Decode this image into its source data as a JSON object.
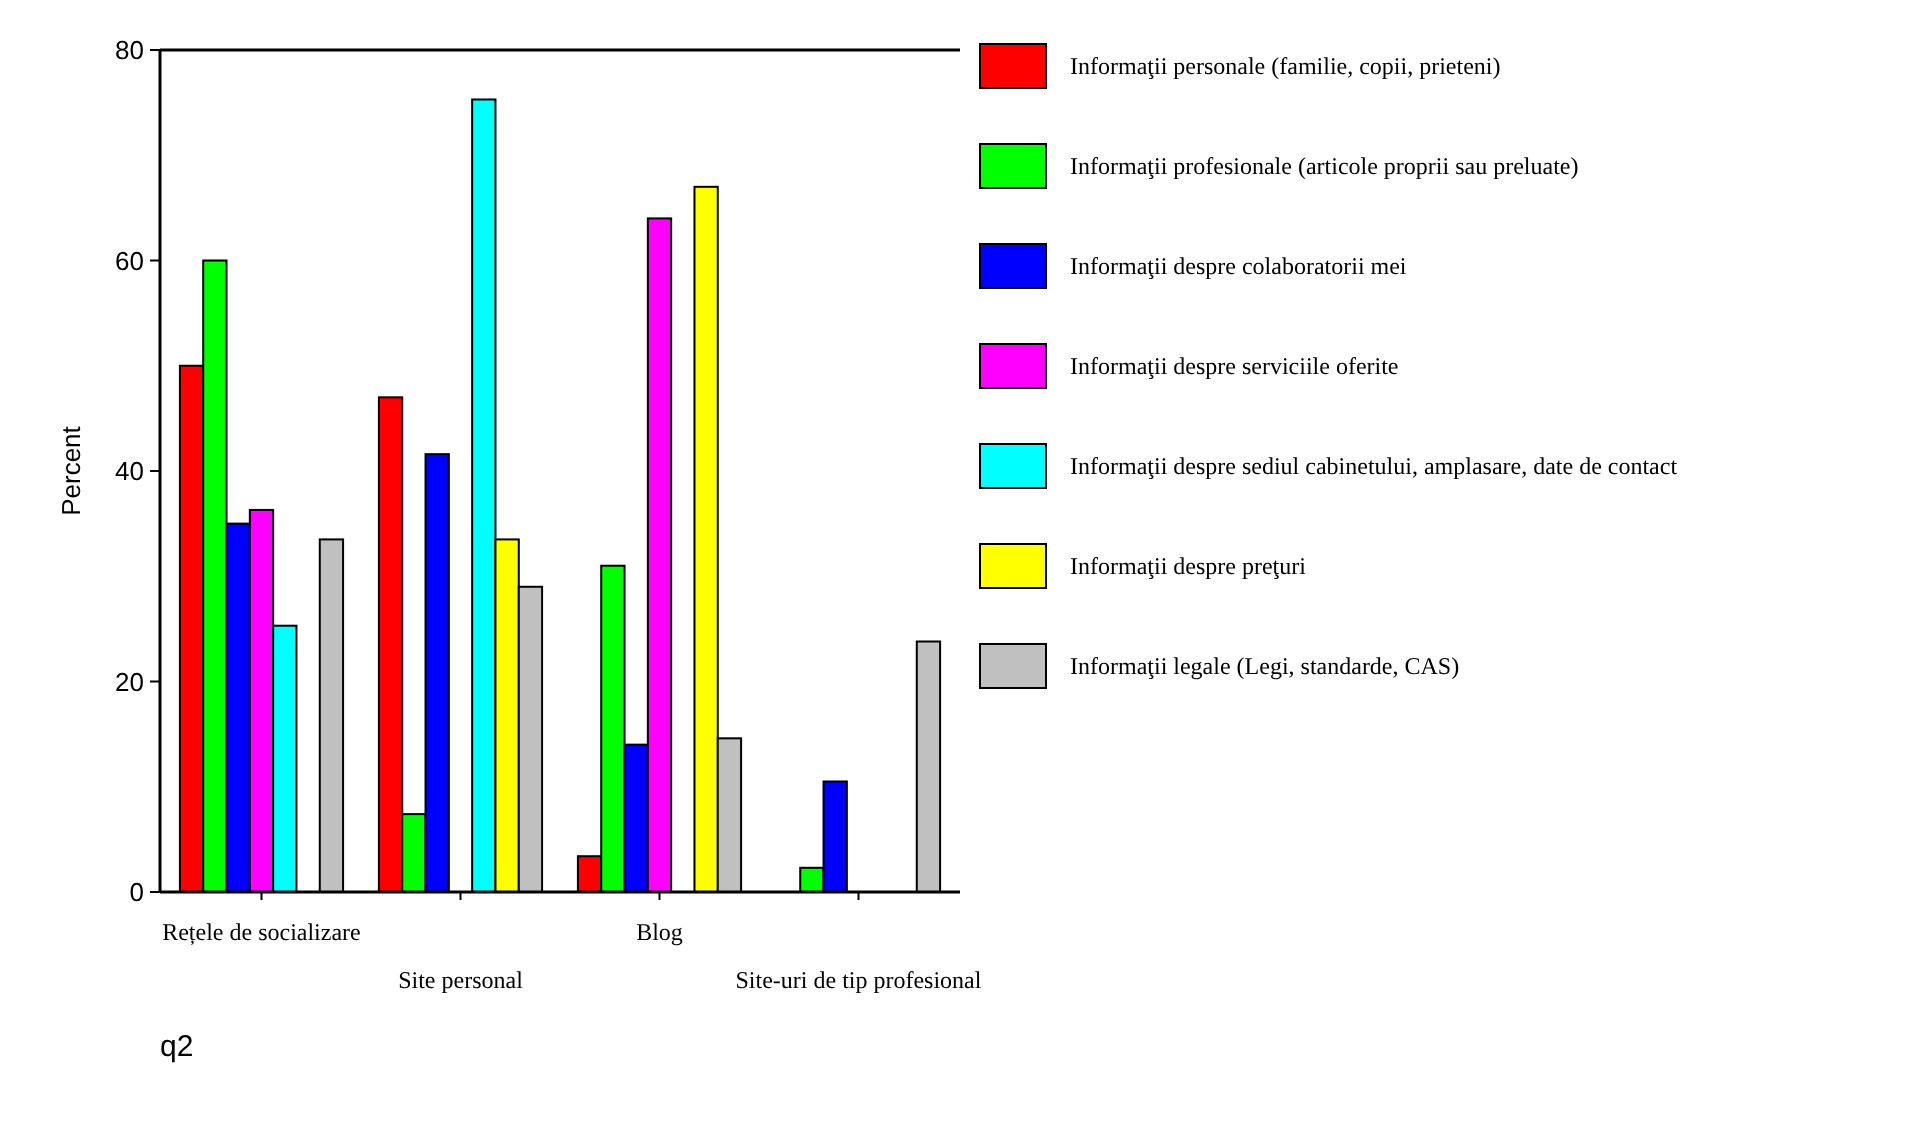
{
  "chart_data": {
    "type": "bar",
    "ylabel": "Percent",
    "annotations": [
      "q2"
    ],
    "categories": [
      "Rețele de socializare",
      "Site personal",
      "Blog",
      "Site-uri de tip profesional"
    ],
    "series": [
      {
        "name": "Informaţii personale (familie, copii, prieteni)",
        "color": "#ff0000",
        "values": [
          50,
          47,
          3.4,
          null
        ]
      },
      {
        "name": "Informaţii profesionale (articole proprii sau preluate)",
        "color": "#00ff00",
        "values": [
          60,
          7.4,
          31,
          2.3
        ]
      },
      {
        "name": "Informaţii despre colaboratorii mei",
        "color": "#0000ff",
        "values": [
          35,
          41.6,
          14,
          10.5
        ]
      },
      {
        "name": "Informaţii despre serviciile oferite",
        "color": "#ff00ff",
        "values": [
          36.3,
          null,
          64,
          null
        ]
      },
      {
        "name": "Informaţii despre sediul cabinetului, amplasare, date de contact",
        "color": "#00ffff",
        "values": [
          25.3,
          75.3,
          null,
          null
        ]
      },
      {
        "name": "Informaţii despre preţuri",
        "color": "#ffff00",
        "values": [
          null,
          33.5,
          67,
          null
        ]
      },
      {
        "name": "Informaţii legale (Legi, standarde, CAS)",
        "color": "#c0c0c0",
        "values": [
          33.5,
          29,
          14.6,
          23.8
        ]
      }
    ],
    "ylim": [
      0,
      80
    ],
    "yticks": [
      0,
      20,
      40,
      60,
      80
    ],
    "grid": false,
    "legend": "right"
  }
}
